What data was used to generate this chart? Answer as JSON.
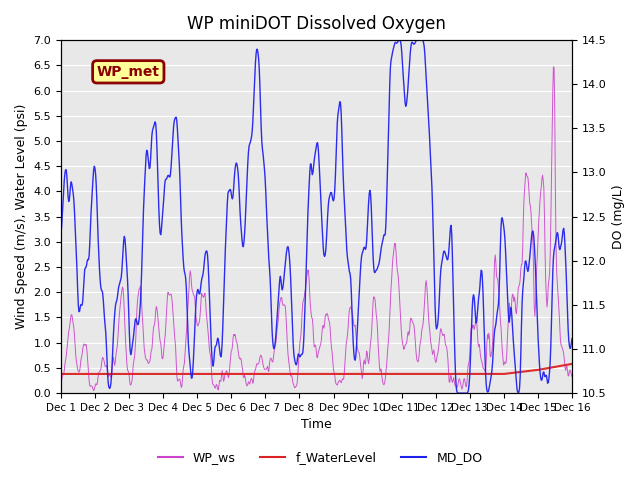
{
  "title": "WP miniDOT Dissolved Oxygen",
  "ylabel_left": "Wind Speed (m/s), Water Level (psi)",
  "ylabel_right": "DO (mg/L)",
  "xlabel": "Time",
  "ylim_left": [
    0.0,
    7.0
  ],
  "ylim_right": [
    10.5,
    14.5
  ],
  "xlim": [
    0,
    15
  ],
  "xtick_labels": [
    "Dec 1",
    "Dec 2",
    "Dec 3",
    "Dec 4",
    "Dec 5",
    "Dec 6",
    "Dec 7",
    "Dec 8",
    "Dec 9",
    "Dec 10",
    "Dec 11",
    "Dec 12",
    "Dec 13",
    "Dec 14",
    "Dec 15",
    "Dec 16"
  ],
  "yticks_left": [
    0.0,
    0.5,
    1.0,
    1.5,
    2.0,
    2.5,
    3.0,
    3.5,
    4.0,
    4.5,
    5.0,
    5.5,
    6.0,
    6.5,
    7.0
  ],
  "yticks_right": [
    10.5,
    11.0,
    11.5,
    12.0,
    12.5,
    13.0,
    13.5,
    14.0,
    14.5
  ],
  "color_ws": "#CC44CC",
  "color_wl": "#DD2222",
  "color_do": "#2222EE",
  "background_color": "#E8E8E8",
  "legend_labels": [
    "WP_ws",
    "f_WaterLevel",
    "MD_DO"
  ],
  "annotation_text": "WP_met",
  "annotation_bg": "#FFFF99",
  "annotation_border": "#8B0000",
  "annotation_color": "#8B0000"
}
